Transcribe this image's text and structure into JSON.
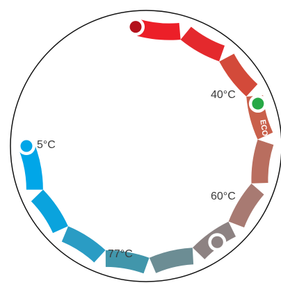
{
  "dial": {
    "unit": "°C",
    "min_temp": 5,
    "max_temp": 77,
    "segment_colors": [
      "#00a6e8",
      "#0aa3dd",
      "#2a9cc4",
      "#4196ab",
      "#6c8d94",
      "#8d8282",
      "#a87a72",
      "#b96e5f",
      "#c9604b",
      "#d34a3a",
      "#e4292d",
      "#ec1f28"
    ],
    "markers": [
      {
        "name": "min-temp-marker",
        "label": "5°C",
        "color": "#00a6e8",
        "position": 0
      },
      {
        "name": "setpoint-40-marker",
        "label": "40°C",
        "color": "#8d8282",
        "position": 0.46
      },
      {
        "name": "eco-setpoint-60-marker",
        "label": "60°C",
        "color": "#27a846",
        "position": 0.73
      },
      {
        "name": "max-temp-marker",
        "label": "77°C",
        "color": "#b3111b",
        "position": 1
      }
    ],
    "eco_label": "ECO"
  }
}
